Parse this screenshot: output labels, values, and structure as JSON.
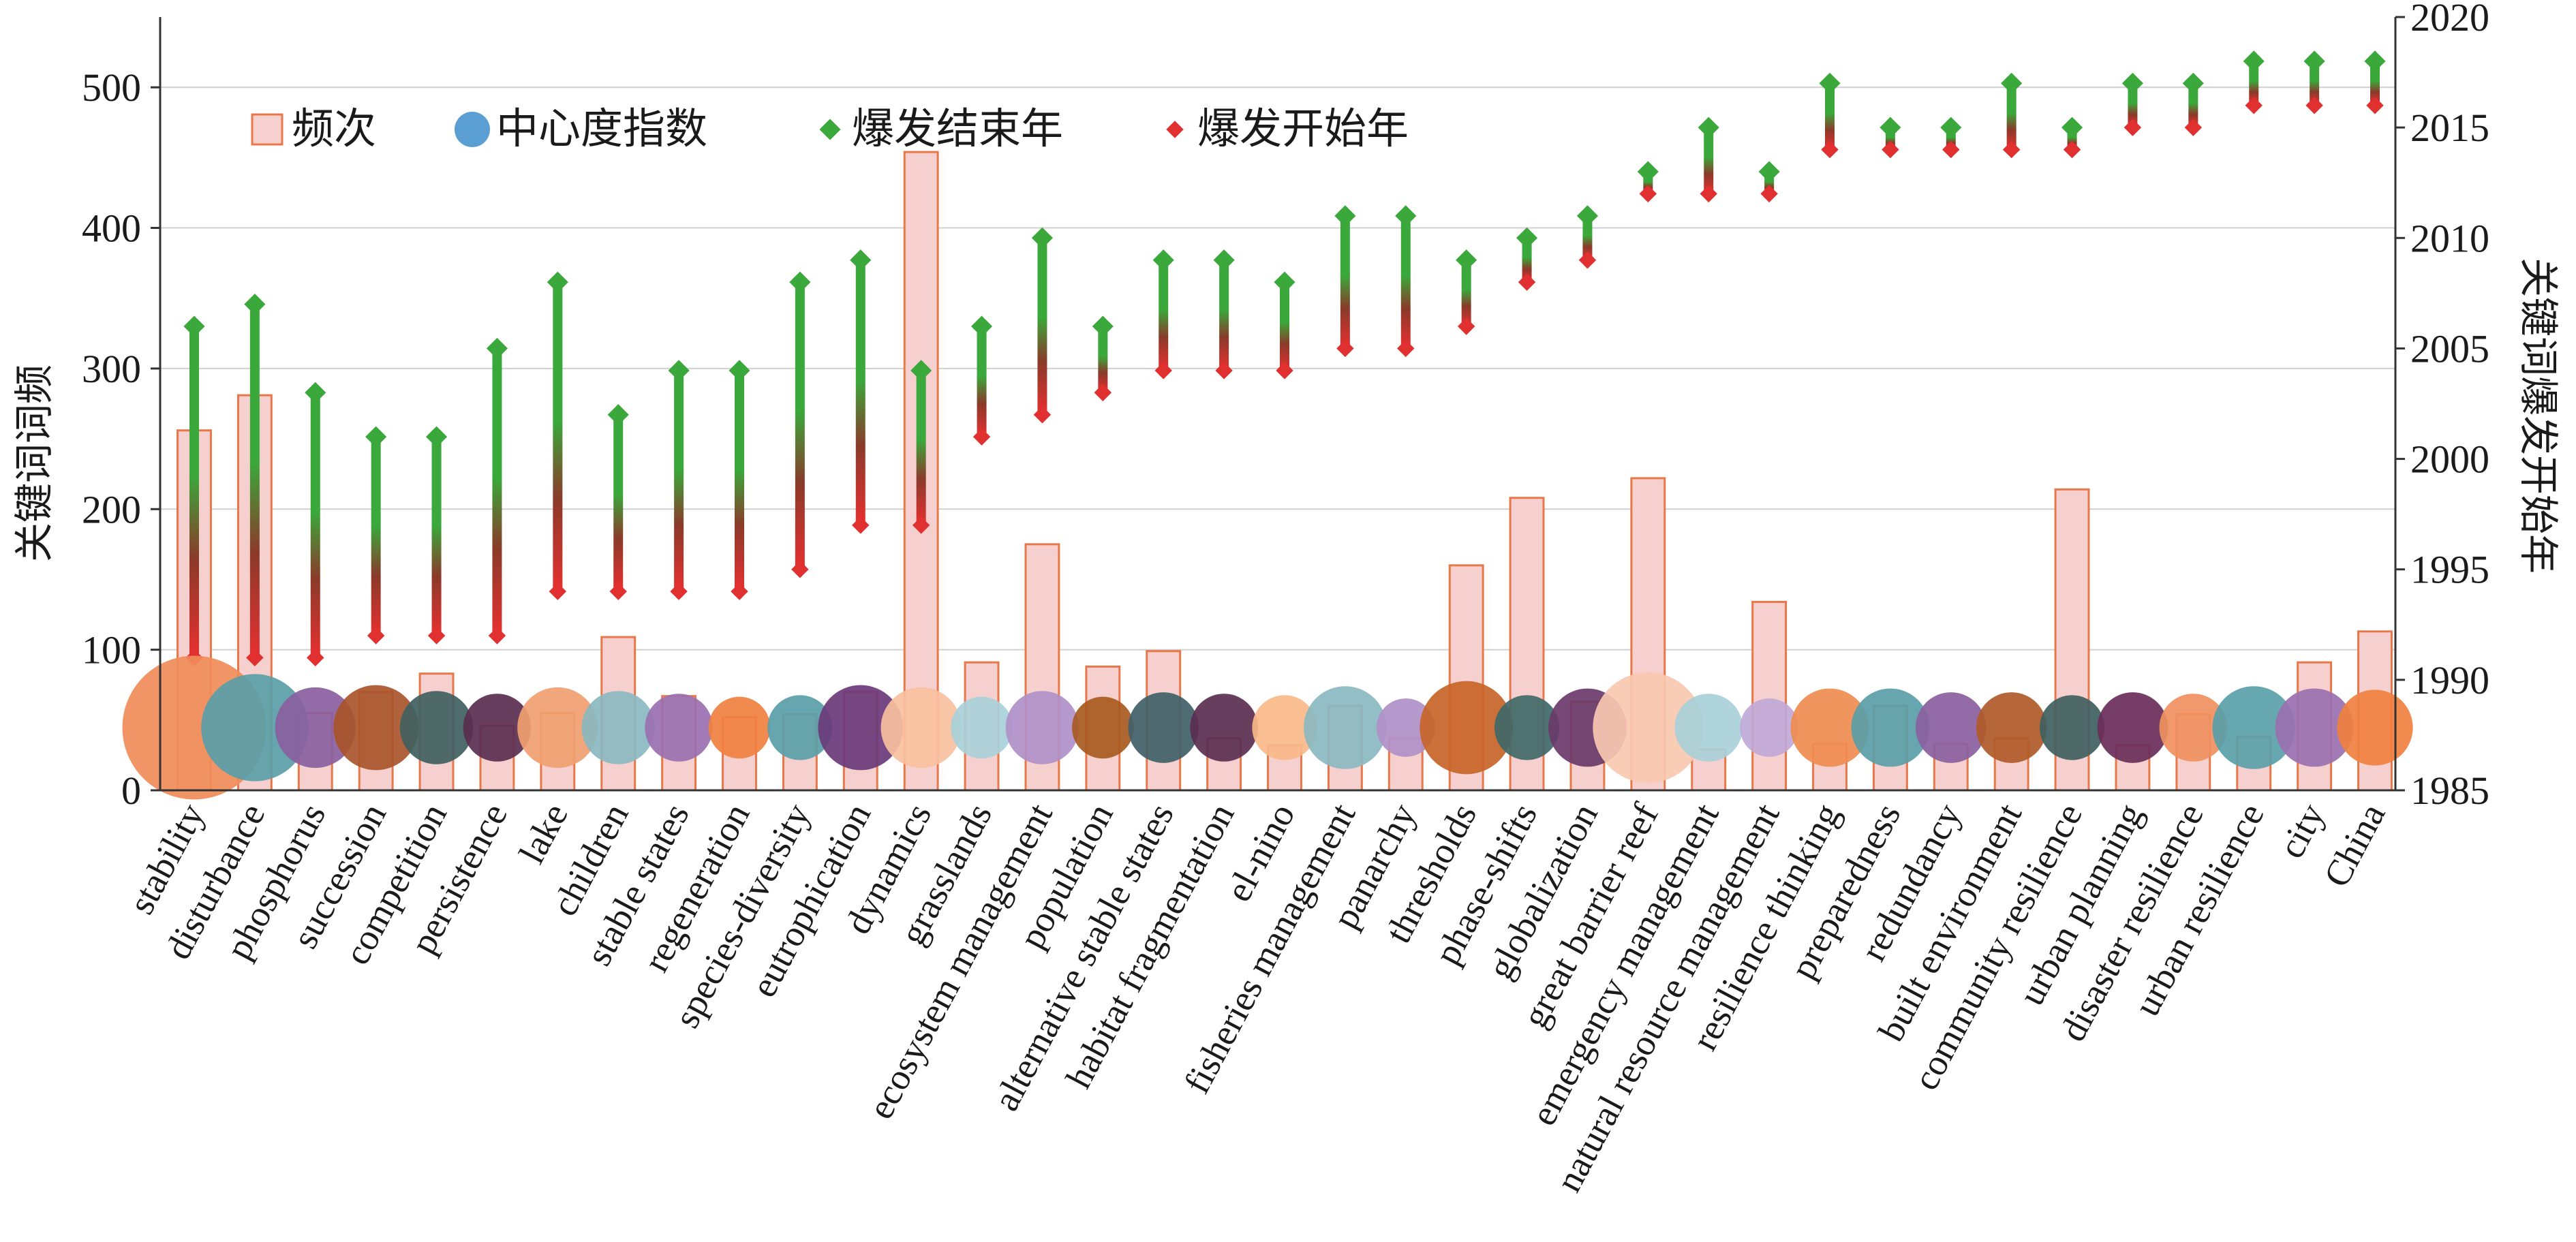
{
  "chart_data": {
    "type": "bar",
    "title": "",
    "ylabel": "关键词词频",
    "y2label": "关键词爆发开始年",
    "ylim": [
      0,
      550
    ],
    "yticks": [
      0,
      100,
      200,
      300,
      400,
      500
    ],
    "y2lim": [
      1985,
      2020
    ],
    "y2ticks": [
      1985,
      1990,
      1995,
      2000,
      2005,
      2010,
      2015,
      2020
    ],
    "grid": true,
    "legend_position": "top-left",
    "legend": {
      "freq": "频次",
      "centrality": "中心度指数",
      "burst_end": "爆发结束年",
      "burst_start": "爆发开始年"
    },
    "colors": {
      "bar_fill": "#f5d0cf",
      "bar_stroke": "#e8784a",
      "burst_end": "#3aa83a",
      "burst_start": "#e03030",
      "grid": "#d0d0d0",
      "axis": "#333333"
    },
    "categories": [
      "stability",
      "disturbance",
      "phosphorus",
      "succession",
      "competition",
      "persistence",
      "lake",
      "children",
      "stable states",
      "regeneration",
      "species-diversity",
      "eutrophication",
      "dynamics",
      "grasslands",
      "ecosystem management",
      "population",
      "alternative stable states",
      "habitat fragmentation",
      "el-nino",
      "fisheries management",
      "panarchy",
      "thresholds",
      "phase-shifts",
      "globalization",
      "great barrier reef",
      "emergency management",
      "natural resource management",
      "resilience thinking",
      "preparedness",
      "redundancy",
      "built environment",
      "community resilience",
      "urban planning",
      "disaster resilience",
      "urban resilience",
      "city",
      "China"
    ],
    "series": [
      {
        "name": "频次",
        "type": "bar",
        "axis": "left",
        "values": [
          256,
          281,
          55,
          70,
          83,
          46,
          55,
          109,
          67,
          52,
          54,
          70,
          454,
          91,
          175,
          88,
          99,
          37,
          32,
          60,
          37,
          160,
          208,
          63,
          222,
          29,
          134,
          33,
          60,
          33,
          37,
          214,
          32,
          54,
          38,
          91,
          113
        ]
      },
      {
        "name": "爆发开始年",
        "type": "point",
        "axis": "right",
        "values": [
          1991,
          1991,
          1991,
          1992,
          1992,
          1992,
          1994,
          1994,
          1994,
          1994,
          1995,
          1997,
          1997,
          2001,
          2002,
          2003,
          2004,
          2004,
          2004,
          2005,
          2005,
          2006,
          2008,
          2009,
          2012,
          2012,
          2012,
          2014,
          2014,
          2014,
          2014,
          2014,
          2015,
          2015,
          2016,
          2016,
          2016
        ]
      },
      {
        "name": "爆发结束年",
        "type": "point",
        "axis": "right",
        "values": [
          2006,
          2007,
          2003,
          2001,
          2001,
          2005,
          2008,
          2002,
          2004,
          2004,
          2008,
          2009,
          2004,
          2006,
          2010,
          2006,
          2009,
          2009,
          2008,
          2011,
          2011,
          2009,
          2010,
          2011,
          2013,
          2015,
          2013,
          2017,
          2015,
          2015,
          2017,
          2015,
          2017,
          2017,
          2018,
          2018,
          2018
        ]
      },
      {
        "name": "中心度指数",
        "type": "bubble",
        "centrality": [
          0.55,
          0.28,
          0.14,
          0.16,
          0.11,
          0.09,
          0.14,
          0.11,
          0.09,
          0.07,
          0.08,
          0.16,
          0.14,
          0.07,
          0.11,
          0.07,
          0.1,
          0.09,
          0.08,
          0.15,
          0.06,
          0.2,
          0.08,
          0.13,
          0.3,
          0.09,
          0.06,
          0.13,
          0.13,
          0.1,
          0.1,
          0.08,
          0.1,
          0.09,
          0.15,
          0.13,
          0.12
        ],
        "colors": [
          "#f08c5a",
          "#5a9ea8",
          "#8a5fa0",
          "#a8552a",
          "#406060",
          "#5a2e50",
          "#f0a070",
          "#8ab8c0",
          "#9a70b0",
          "#f08040",
          "#5a9ea8",
          "#6a3a7a",
          "#f8c0a0",
          "#a8d0d8",
          "#b090c8",
          "#a85a20",
          "#406068",
          "#5a2e50",
          "#f8b888",
          "#8ab8c0",
          "#b090c8",
          "#c86428",
          "#406868",
          "#6a3a6a",
          "#f8c8b0",
          "#a8d0d8",
          "#c0a8d8",
          "#f08c50",
          "#5a9ea8",
          "#8a5fa0",
          "#b05a28",
          "#406060",
          "#6a2e5a",
          "#f09060",
          "#5aa0a8",
          "#9a70b0",
          "#f08040"
        ]
      }
    ]
  }
}
